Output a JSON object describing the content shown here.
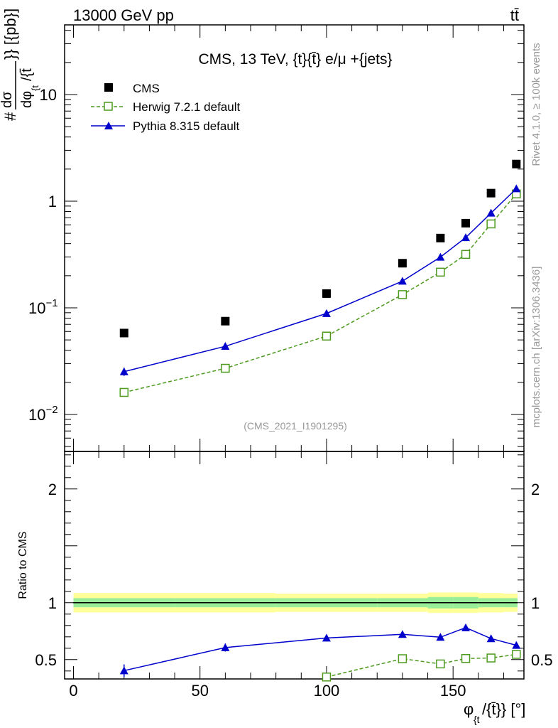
{
  "header": {
    "energy_label": "13000 GeV pp",
    "process_label": "tt̄"
  },
  "side_notes": {
    "rivet": "Rivet 4.1.0, ≥ 100k events",
    "mcplots": "mcplots.cern.ch [arXiv:1306.3436]"
  },
  "colors": {
    "cms": "#000000",
    "herwig": "#4d9a1f",
    "pythia": "#0000cc",
    "band_outer": "#ffff99",
    "band_inner": "#99ee99",
    "side_text": "#999999"
  },
  "chart_data": [
    {
      "type": "scatter",
      "title": "CMS, 13 TeV, {t}{t̄} e/μ +{jets}",
      "watermark": "(CMS_2021_I1901295)",
      "ylabel_top": "#",
      "ylabel_frac_num": "dσ",
      "ylabel_frac_den": "dφ",
      "ylabel_den_sub": "{t",
      "ylabel_den_tail": "/{t̄",
      "ylabel_tail": "}} [{pb}]",
      "yscale": "log",
      "ylim": [
        0.0045,
        45
      ],
      "xlim": [
        -3.5,
        178
      ],
      "y_ticks": [
        {
          "value": 10,
          "label": "10"
        },
        {
          "value": 1,
          "label": "1"
        },
        {
          "value": 0.1,
          "label_base": "10",
          "label_exp": "−1"
        },
        {
          "value": 0.01,
          "label_base": "10",
          "label_exp": "−2"
        }
      ],
      "legend_position": "top-left",
      "series": [
        {
          "name": "CMS",
          "style": "square-filled",
          "x": [
            20,
            60,
            100,
            130,
            145,
            155,
            165,
            175
          ],
          "y": [
            0.058,
            0.075,
            0.136,
            0.262,
            0.451,
            0.622,
            1.19,
            2.23
          ]
        },
        {
          "name": "Herwig 7.2.1 default",
          "style": "square-open-dashed",
          "x": [
            20,
            60,
            100,
            130,
            145,
            155,
            165,
            175
          ],
          "y": [
            0.0161,
            0.0271,
            0.0543,
            0.133,
            0.216,
            0.317,
            0.612,
            1.17
          ]
        },
        {
          "name": "Pythia 8.315 default",
          "style": "triangle-solid",
          "x": [
            20,
            60,
            100,
            130,
            145,
            155,
            165,
            175
          ],
          "y": [
            0.0252,
            0.0436,
            0.0886,
            0.178,
            0.299,
            0.456,
            0.774,
            1.31
          ],
          "y_err": [
            0.0022,
            0.0025,
            0.0035,
            0.006,
            0.01,
            0.015,
            0.02,
            0.03
          ]
        }
      ]
    },
    {
      "type": "line",
      "ylabel": "Ratio to CMS",
      "xlabel_main": "φ",
      "xlabel_sub": "{t",
      "xlabel_tail": "/{t̄}} [°]",
      "ylim": [
        0.33,
        2.33
      ],
      "xlim": [
        -3.5,
        178
      ],
      "x_ticks": [
        0,
        50,
        100,
        150
      ],
      "x_tick_labels": [
        "0",
        "50",
        "100",
        "150"
      ],
      "y_ticks": [
        0.5,
        1,
        2
      ],
      "y_tick_labels": [
        "0.5",
        "1",
        "2"
      ],
      "reference_line": 1,
      "band": {
        "x_edges": [
          0,
          40,
          80,
          120,
          140,
          150,
          160,
          170,
          180
        ],
        "outer_half_width": [
          0.085,
          0.085,
          0.08,
          0.08,
          0.09,
          0.09,
          0.085,
          0.08
        ],
        "inner_half_width": [
          0.04,
          0.04,
          0.04,
          0.04,
          0.05,
          0.05,
          0.04,
          0.04
        ]
      },
      "series": [
        {
          "name": "Herwig 7.2.1 default",
          "style": "square-open-dashed",
          "x": [
            100,
            130,
            145,
            155,
            165,
            175
          ],
          "y": [
            0.347,
            0.508,
            0.462,
            0.51,
            0.514,
            0.546
          ],
          "y_err": [
            0.015,
            0.02,
            0.025,
            0.018,
            0.012,
            0.01
          ]
        },
        {
          "name": "Pythia 8.315 default",
          "style": "triangle-solid",
          "x": [
            20,
            60,
            100,
            130,
            145,
            155,
            165,
            175
          ],
          "y": [
            0.403,
            0.606,
            0.69,
            0.722,
            0.697,
            0.781,
            0.685,
            0.626
          ],
          "y_err": [
            0.055,
            0.035,
            0.022,
            0.022,
            0.025,
            0.022,
            0.012,
            0.01
          ]
        }
      ]
    }
  ]
}
